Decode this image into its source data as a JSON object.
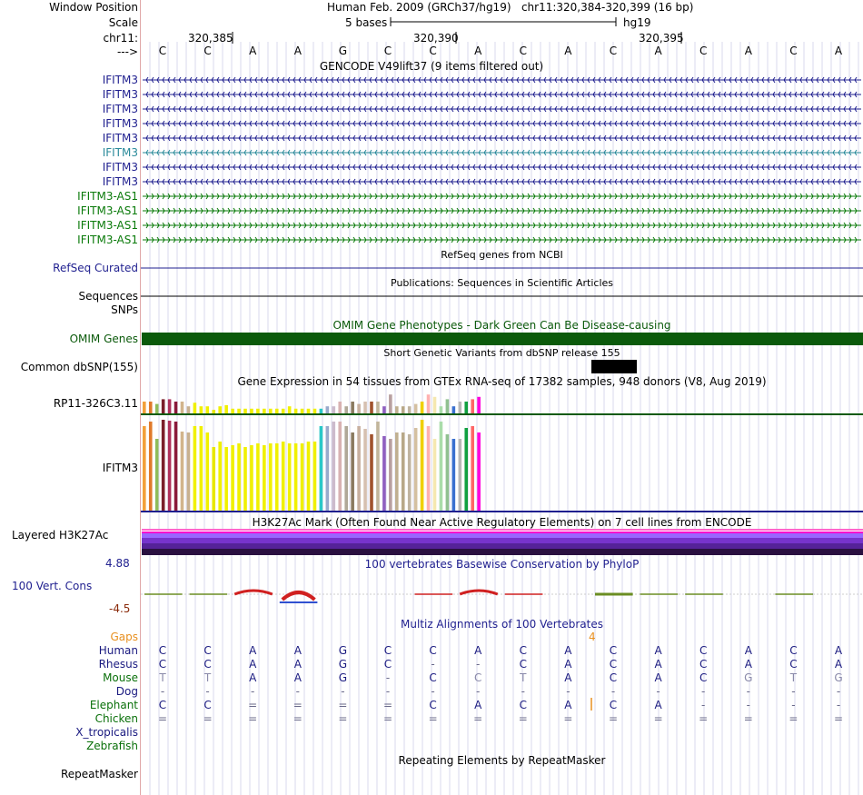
{
  "header": {
    "window_position_label": "Window Position",
    "scale_label": "Scale",
    "chrom_label": "chr11:",
    "arrow_label": "--->",
    "title": "Human Feb. 2009 (GRCh37/hg19)   chr11:320,384-320,399 (16 bp)",
    "scale_text": "5 bases",
    "assembly": "hg19",
    "positions": [
      "320,385",
      "320,390",
      "320,395"
    ]
  },
  "bases": [
    "C",
    "C",
    "A",
    "A",
    "G",
    "C",
    "C",
    "A",
    "C",
    "A",
    "C",
    "A",
    "C",
    "A",
    "C",
    "A"
  ],
  "tracks": {
    "gencode": {
      "title": "GENCODE V49lift37 (9 items filtered out)",
      "items": [
        {
          "name": "IFITM3",
          "color": "#1f1f8f",
          "strand": "minus"
        },
        {
          "name": "IFITM3",
          "color": "#1f1f8f",
          "strand": "minus"
        },
        {
          "name": "IFITM3",
          "color": "#1f1f8f",
          "strand": "minus"
        },
        {
          "name": "IFITM3",
          "color": "#1f1f8f",
          "strand": "minus"
        },
        {
          "name": "IFITM3",
          "color": "#1f1f8f",
          "strand": "minus"
        },
        {
          "name": "IFITM3",
          "color": "#2a8a9a",
          "strand": "minus"
        },
        {
          "name": "IFITM3",
          "color": "#1f1f8f",
          "strand": "minus"
        },
        {
          "name": "IFITM3",
          "color": "#1f1f8f",
          "strand": "minus"
        },
        {
          "name": "IFITM3-AS1",
          "color": "#0a7a0a",
          "strand": "plus"
        },
        {
          "name": "IFITM3-AS1",
          "color": "#0a7a0a",
          "strand": "plus"
        },
        {
          "name": "IFITM3-AS1",
          "color": "#0a7a0a",
          "strand": "plus"
        },
        {
          "name": "IFITM3-AS1",
          "color": "#0a7a0a",
          "strand": "plus"
        }
      ]
    },
    "refseq": {
      "title": "RefSeq genes from NCBI",
      "label": "RefSeq Curated"
    },
    "publications": {
      "title": "Publications: Sequences in Scientific Articles",
      "label": "Sequences"
    },
    "snps_label": "SNPs",
    "omim": {
      "title": "OMIM Gene Phenotypes - Dark Green Can Be Disease-causing",
      "label": "OMIM Genes",
      "color": "#0b5a0b"
    },
    "dbsnp": {
      "title": "Short Genetic Variants from dbSNP release 155",
      "label": "Common dbSNP(155)"
    },
    "gtex": {
      "title": "Gene Expression in 54 tissues from GTEx RNA-seq of 17382 samples, 948 donors (V8, Aug 2019)",
      "gene1": "RP11-326C3.11",
      "gene2": "IFITM3",
      "colors": [
        "#f2a03a",
        "#e07a2a",
        "#8fbc5a",
        "#7a1f2a",
        "#b0305a",
        "#8a1a3a",
        "#d2b48c",
        "#c8b090",
        "#f0f000",
        "#f0f000",
        "#f0f000",
        "#e8e800",
        "#f0f000",
        "#f0f000",
        "#f0f000",
        "#f0f000",
        "#f0f000",
        "#f0f000",
        "#f0f000",
        "#f0f000",
        "#f0f000",
        "#f0f000",
        "#f0f000",
        "#f0f000",
        "#f0f000",
        "#f0f000",
        "#f0f000",
        "#f0f000",
        "#2ac8c8",
        "#99aacc",
        "#ccbbcc",
        "#d8b2b2",
        "#b0a898",
        "#8a7a60",
        "#c8b0a0",
        "#d6c0b0",
        "#a0522d",
        "#c2b59b",
        "#9060c0",
        "#b8a0a0",
        "#c0b090",
        "#b8a888",
        "#c0b4a0",
        "#d4c0a0",
        "#f0d000",
        "#ffb0b0",
        "#f5e8b0",
        "#aaddaa",
        "#90c090",
        "#3a70d0",
        "#b8b8b8",
        "#10a040",
        "#ff6666",
        "#ff00dd"
      ],
      "values1": [
        0.5,
        0.5,
        0.4,
        0.6,
        0.6,
        0.5,
        0.5,
        0.3,
        0.45,
        0.3,
        0.3,
        0.15,
        0.3,
        0.35,
        0.2,
        0.2,
        0.2,
        0.2,
        0.2,
        0.2,
        0.2,
        0.2,
        0.2,
        0.3,
        0.2,
        0.2,
        0.2,
        0.2,
        0.2,
        0.3,
        0.3,
        0.5,
        0.3,
        0.5,
        0.4,
        0.5,
        0.5,
        0.5,
        0.3,
        0.8,
        0.3,
        0.3,
        0.3,
        0.4,
        0.5,
        0.8,
        0.7,
        0.3,
        0.6,
        0.3,
        0.5,
        0.5,
        0.6,
        0.7
      ],
      "values2": [
        0.93,
        0.98,
        0.79,
        1.0,
        0.99,
        0.98,
        0.87,
        0.86,
        0.93,
        0.93,
        0.86,
        0.7,
        0.76,
        0.7,
        0.72,
        0.74,
        0.7,
        0.72,
        0.74,
        0.72,
        0.74,
        0.74,
        0.76,
        0.74,
        0.74,
        0.74,
        0.76,
        0.76,
        0.93,
        0.93,
        0.98,
        0.98,
        0.93,
        0.86,
        0.93,
        0.9,
        0.84,
        0.98,
        0.82,
        0.79,
        0.86,
        0.86,
        0.84,
        0.91,
        1.0,
        0.93,
        0.79,
        0.98,
        0.84,
        0.79,
        0.79,
        0.91,
        0.93,
        0.86
      ]
    },
    "h3k27ac": {
      "title": "H3K27Ac Mark (Often Found Near Active Regulatory Elements) on 7 cell lines from ENCODE",
      "label": "Layered H3K27Ac"
    },
    "phylop": {
      "title": "100 vertebrates Basewise Conservation by PhyloP",
      "label": "100 Vert. Cons",
      "max": "4.88",
      "min": "-4.5",
      "scores": [
        0.1,
        0.1,
        0.9,
        -1.5,
        0,
        0,
        -0.2,
        -1.6,
        -0.3,
        0,
        0.6,
        0.1,
        0.1,
        0,
        0.1,
        0
      ]
    },
    "multiz": {
      "title": "Multiz Alignments of 100 Vertebrates",
      "gaps_label": "Gaps",
      "gap_count": "4",
      "species": [
        {
          "name": "Human",
          "color": "#1a1a80",
          "bases": [
            "C",
            "C",
            "A",
            "A",
            "G",
            "C",
            "C",
            "A",
            "C",
            "A",
            "C",
            "A",
            "C",
            "A",
            "C",
            "A"
          ],
          "bcolor": "#1a1a80"
        },
        {
          "name": "Rhesus",
          "color": "#1a1a80",
          "bases": [
            "C",
            "C",
            "A",
            "A",
            "G",
            "C",
            "-",
            "-",
            "C",
            "A",
            "C",
            "A",
            "C",
            "A",
            "C",
            "A"
          ],
          "bcolor": "#1a1a80"
        },
        {
          "name": "Mouse",
          "color": "#0a700a",
          "bases": [
            "T",
            "T",
            "A",
            "A",
            "G",
            "-",
            "C",
            "C",
            "T",
            "A",
            "C",
            "A",
            "C",
            "G",
            "T",
            "G"
          ],
          "bcolor": "#1a1a80"
        },
        {
          "name": "Dog",
          "color": "#1a1a80",
          "bases": [
            "-",
            "-",
            "-",
            "-",
            "-",
            "-",
            "-",
            "-",
            "-",
            "-",
            "-",
            "-",
            "-",
            "-",
            "-",
            "-"
          ],
          "bcolor": "#1a1a80"
        },
        {
          "name": "Elephant",
          "color": "#0a700a",
          "bases": [
            "C",
            "C",
            "=",
            "=",
            "=",
            "=",
            "C",
            "A",
            "C",
            "A",
            "C",
            "A",
            "-",
            "-",
            "-",
            "-"
          ],
          "bcolor": "#1a1a80"
        },
        {
          "name": "Chicken",
          "color": "#0a700a",
          "bases": [
            "=",
            "=",
            "=",
            "=",
            "=",
            "=",
            "=",
            "=",
            "=",
            "=",
            "=",
            "=",
            "=",
            "=",
            "=",
            "="
          ],
          "bcolor": "#1a1a80"
        },
        {
          "name": "X_tropicalis",
          "color": "#1a1a80",
          "bases": [],
          "bcolor": "#1a1a80"
        },
        {
          "name": "Zebrafish",
          "color": "#0a700a",
          "bases": [],
          "bcolor": "#1a1a80"
        }
      ]
    },
    "repeatmasker": {
      "title": "Repeating Elements by RepeatMasker",
      "label": "RepeatMasker"
    }
  }
}
